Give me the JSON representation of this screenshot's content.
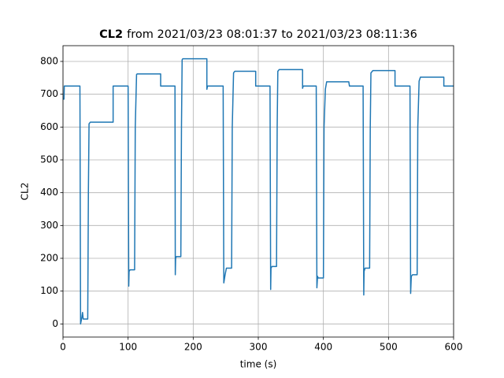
{
  "chart_data": {
    "type": "line",
    "title": {
      "bold": "CL2",
      "text": "from 2021/03/23 08:01:37 to 2021/03/23 08:11:36"
    },
    "x_label": "time (s)",
    "y_label": "CL2",
    "x": [
      0,
      1.5,
      2,
      26,
      27,
      29,
      30,
      31,
      38,
      39,
      40,
      42,
      77,
      77,
      100,
      101,
      101.5,
      103,
      110,
      111,
      113,
      114,
      150,
      150,
      172,
      172.5,
      173,
      174,
      181,
      182,
      183,
      184,
      221,
      221,
      222,
      246,
      247,
      249,
      251,
      259,
      260,
      262,
      264,
      296,
      296,
      318,
      319,
      319.5,
      321,
      328,
      329,
      330,
      332,
      368,
      368,
      369,
      389,
      390,
      391,
      392,
      400,
      401,
      403,
      405,
      439,
      440,
      461,
      462,
      462.5,
      464,
      471,
      472,
      473,
      476,
      510,
      510,
      533,
      534,
      535,
      537,
      544,
      545,
      547,
      549,
      585,
      585,
      600
    ],
    "series": [
      {
        "color": "#1f77b4",
        "values": [
          685,
          685,
          725,
          725,
          0,
          20,
          35,
          15,
          15,
          400,
          610,
          615,
          615,
          725,
          725,
          115,
          160,
          165,
          165,
          600,
          760,
          762,
          762,
          725,
          725,
          150,
          200,
          205,
          205,
          600,
          805,
          808,
          808,
          715,
          725,
          725,
          125,
          150,
          170,
          170,
          600,
          765,
          770,
          770,
          725,
          725,
          105,
          170,
          175,
          175,
          600,
          770,
          775,
          775,
          718,
          725,
          725,
          110,
          145,
          140,
          140,
          600,
          715,
          738,
          738,
          725,
          725,
          88,
          160,
          170,
          170,
          600,
          765,
          772,
          772,
          725,
          725,
          93,
          145,
          150,
          150,
          600,
          740,
          752,
          752,
          725,
          725
        ]
      }
    ],
    "xlim": [
      0,
      600
    ],
    "ylim": [
      -40,
      848
    ],
    "xticks": [
      0,
      100,
      200,
      300,
      400,
      500,
      600
    ],
    "yticks": [
      0,
      100,
      200,
      300,
      400,
      500,
      600,
      700,
      800
    ],
    "grid": true
  }
}
